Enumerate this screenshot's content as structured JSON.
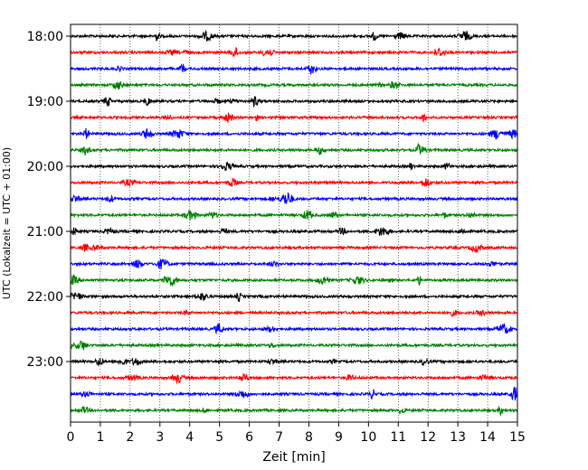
{
  "chart_data": {
    "type": "line",
    "title": "",
    "xlabel": "Zeit  [min]",
    "ylabel": "UTC (Lokalzeit = UTC + 01:00)",
    "xlim": [
      0,
      15
    ],
    "xticks": [
      "0",
      "1",
      "2",
      "3",
      "4",
      "5",
      "6",
      "7",
      "8",
      "9",
      "10",
      "11",
      "12",
      "13",
      "14",
      "15"
    ],
    "yticks": [
      "18:00",
      "19:00",
      "20:00",
      "21:00",
      "22:00",
      "23:00"
    ],
    "grid": "vertical dotted lines at each minute",
    "trace_interval_minutes": 15,
    "trace_colors": [
      "#000000",
      "#ff0000",
      "#0000ff",
      "#008000"
    ],
    "traces": [
      {
        "start": "18:00",
        "color": "#000000"
      },
      {
        "start": "18:15",
        "color": "#ff0000"
      },
      {
        "start": "18:30",
        "color": "#0000ff"
      },
      {
        "start": "18:45",
        "color": "#008000"
      },
      {
        "start": "19:00",
        "color": "#000000"
      },
      {
        "start": "19:15",
        "color": "#ff0000"
      },
      {
        "start": "19:30",
        "color": "#0000ff"
      },
      {
        "start": "19:45",
        "color": "#008000"
      },
      {
        "start": "20:00",
        "color": "#000000"
      },
      {
        "start": "20:15",
        "color": "#ff0000"
      },
      {
        "start": "20:30",
        "color": "#0000ff"
      },
      {
        "start": "20:45",
        "color": "#008000"
      },
      {
        "start": "21:00",
        "color": "#000000"
      },
      {
        "start": "21:15",
        "color": "#ff0000"
      },
      {
        "start": "21:30",
        "color": "#0000ff"
      },
      {
        "start": "21:45",
        "color": "#008000"
      },
      {
        "start": "22:00",
        "color": "#000000"
      },
      {
        "start": "22:15",
        "color": "#ff0000"
      },
      {
        "start": "22:30",
        "color": "#0000ff"
      },
      {
        "start": "22:45",
        "color": "#008000"
      },
      {
        "start": "23:00",
        "color": "#000000"
      },
      {
        "start": "23:15",
        "color": "#ff0000"
      },
      {
        "start": "23:30",
        "color": "#0000ff"
      },
      {
        "start": "23:45",
        "color": "#008000"
      }
    ]
  }
}
